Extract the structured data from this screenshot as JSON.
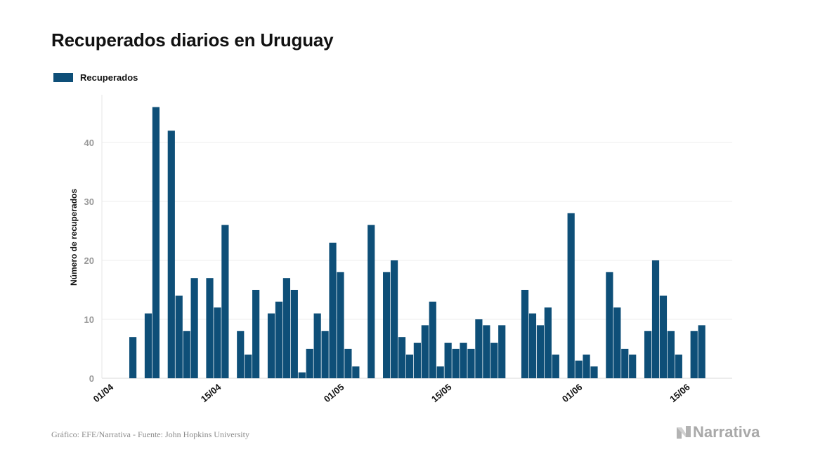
{
  "title": "Recuperados diarios en Uruguay",
  "legend": {
    "label": "Recuperados",
    "color": "#0e4f78"
  },
  "footer": {
    "source": "Gráfico: EFE/Narrativa - Fuente: John Hopkins University",
    "brand": "Narrativa",
    "logo_icon": "narrativa-n-icon"
  },
  "chart_data": {
    "type": "bar",
    "title": "Recuperados diarios en Uruguay",
    "xlabel": "",
    "ylabel": "Número de recuperados",
    "ylim": [
      0,
      48
    ],
    "yticks": [
      0,
      10,
      20,
      30,
      40
    ],
    "grid": true,
    "legend_position": "top-left",
    "tick_labels": [
      "01/04",
      "15/04",
      "01/05",
      "15/05",
      "01/06",
      "15/06"
    ],
    "tick_indices": [
      0,
      14,
      30,
      44,
      61,
      75
    ],
    "series": [
      {
        "name": "Recuperados",
        "color": "#0e4f78",
        "values": [
          0,
          0,
          0,
          7,
          0,
          11,
          46,
          0,
          42,
          14,
          8,
          17,
          0,
          17,
          12,
          26,
          0,
          8,
          4,
          15,
          0,
          11,
          13,
          17,
          15,
          1,
          5,
          11,
          8,
          23,
          18,
          5,
          2,
          0,
          26,
          0,
          18,
          20,
          7,
          4,
          6,
          9,
          13,
          2,
          6,
          5,
          6,
          5,
          10,
          9,
          6,
          9,
          0,
          0,
          15,
          11,
          9,
          12,
          4,
          0,
          28,
          3,
          4,
          2,
          0,
          18,
          12,
          5,
          4,
          0,
          8,
          20,
          14,
          8,
          4,
          0,
          8,
          9,
          0
        ]
      }
    ]
  }
}
